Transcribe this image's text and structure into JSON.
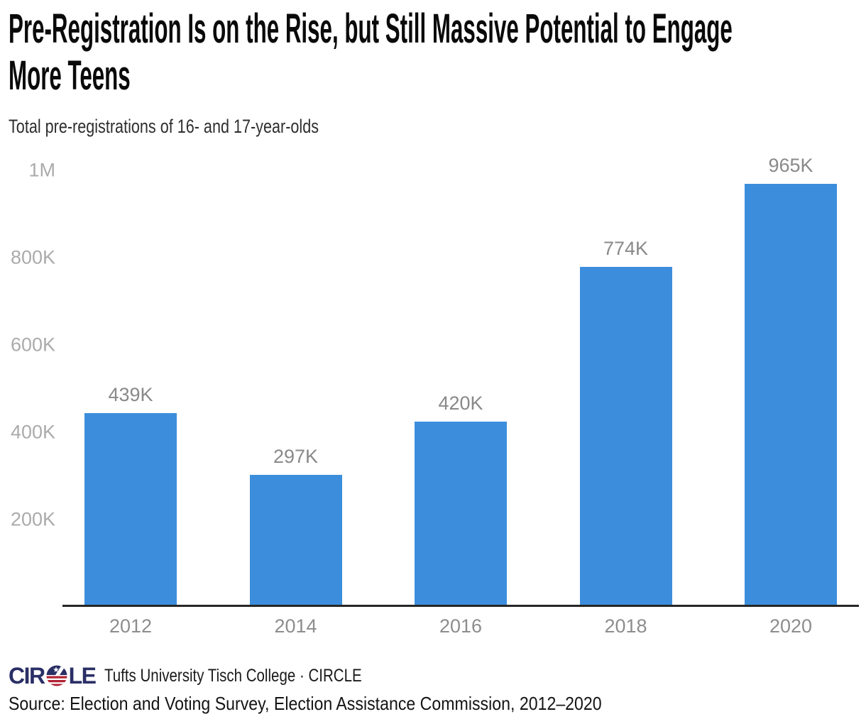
{
  "header": {
    "title_line1": "Pre-Registration Is on the Rise, but Still Massive Potential to Engage",
    "title_line2": "More Teens",
    "subtitle": "Total pre-registrations of 16- and 17-year-olds"
  },
  "chart_data": {
    "type": "bar",
    "title": "Pre-Registration Is on the Rise, but Still Massive Potential to Engage More Teens",
    "subtitle": "Total pre-registrations of 16- and 17-year-olds",
    "categories": [
      "2012",
      "2014",
      "2016",
      "2018",
      "2020"
    ],
    "values": [
      439000,
      297000,
      420000,
      774000,
      965000
    ],
    "value_labels": [
      "439K",
      "297K",
      "420K",
      "774K",
      "965K"
    ],
    "xlabel": "",
    "ylabel": "",
    "ylim": [
      0,
      1000000
    ],
    "yticks": [
      {
        "value": 200000,
        "label": "200K"
      },
      {
        "value": 400000,
        "label": "400K"
      },
      {
        "value": 600000,
        "label": "600K"
      },
      {
        "value": 800000,
        "label": "800K"
      },
      {
        "value": 1000000,
        "label": "1M"
      }
    ],
    "grid": false,
    "legend": false,
    "bar_color": "#3c8edd",
    "axis_line_color": "#262626",
    "tick_label_color": "#ababab",
    "category_label_color": "#8d8d8d",
    "value_label_color": "#898989"
  },
  "footer": {
    "logo": {
      "text_left": "CIR",
      "text_right": "LE",
      "navy": "#2a2f66",
      "red": "#b22234"
    },
    "byline": "Tufts University Tisch College · CIRCLE",
    "source": "Source: Election and Voting Survey, Election Assistance Commission, 2012–2020"
  }
}
